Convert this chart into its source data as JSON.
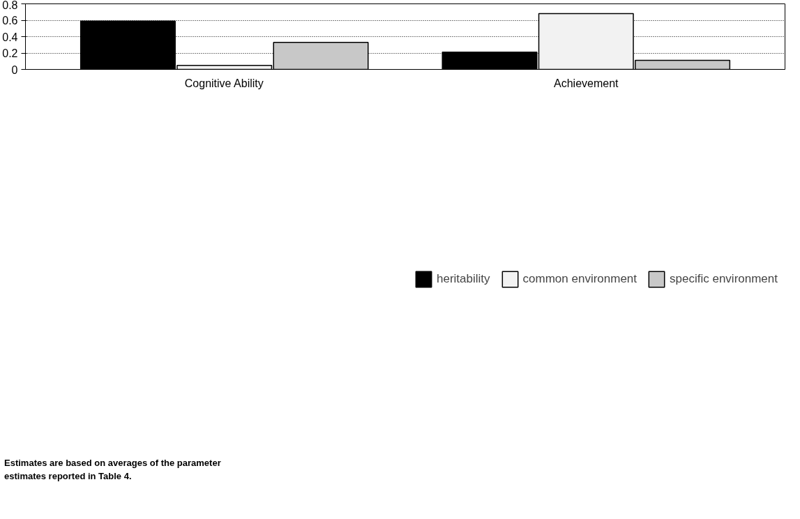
{
  "chart_data": {
    "type": "bar",
    "categories": [
      "Cognitive Ability",
      "Achievement"
    ],
    "series": [
      {
        "name": "heritability",
        "color": "#000000",
        "values": [
          0.59,
          0.21
        ]
      },
      {
        "name": "common environment",
        "color": "#f2f2f2",
        "values": [
          0.05,
          0.68
        ]
      },
      {
        "name": "specific environment",
        "color": "#c8c8c8",
        "values": [
          0.33,
          0.11
        ]
      }
    ],
    "ylim": [
      0,
      0.8
    ],
    "yticks": [
      0,
      0.2,
      0.4,
      0.6,
      0.8
    ],
    "grid": "y",
    "legend": "bottom",
    "annotations": [
      "Estimates are based on averages of the parameter estimates reported in Table 4."
    ]
  }
}
